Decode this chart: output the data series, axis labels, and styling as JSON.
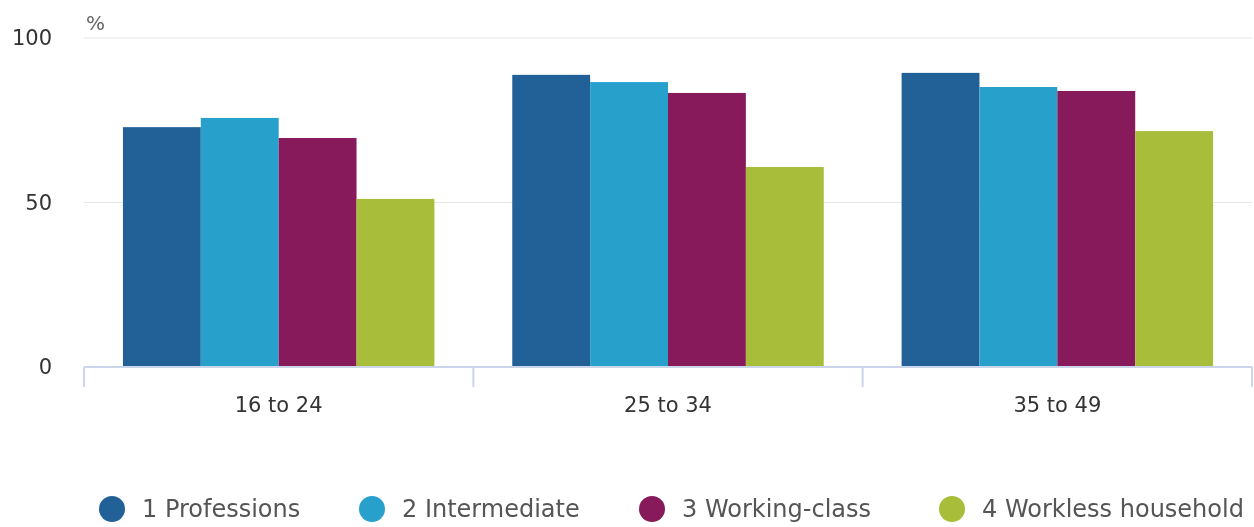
{
  "chart_data": {
    "type": "bar",
    "ylabel": "%",
    "categories": [
      "16 to 24",
      "25 to 34",
      "35 to 49"
    ],
    "series": [
      {
        "name": "1 Professions",
        "color": "#216197",
        "values": [
          72.9,
          88.8,
          89.4
        ]
      },
      {
        "name": "2 Intermediate",
        "color": "#27a0cc",
        "values": [
          75.7,
          86.6,
          85.1
        ]
      },
      {
        "name": "3 Working-class",
        "color": "#871a5b",
        "values": [
          69.6,
          83.3,
          83.9
        ]
      },
      {
        "name": "4 Workless household",
        "color": "#a8bd3a",
        "values": [
          51.1,
          60.8,
          71.7
        ]
      }
    ],
    "ylim": [
      0,
      100
    ],
    "yticks": [
      0,
      50,
      100
    ],
    "grid": "y",
    "legend": "bottom"
  }
}
